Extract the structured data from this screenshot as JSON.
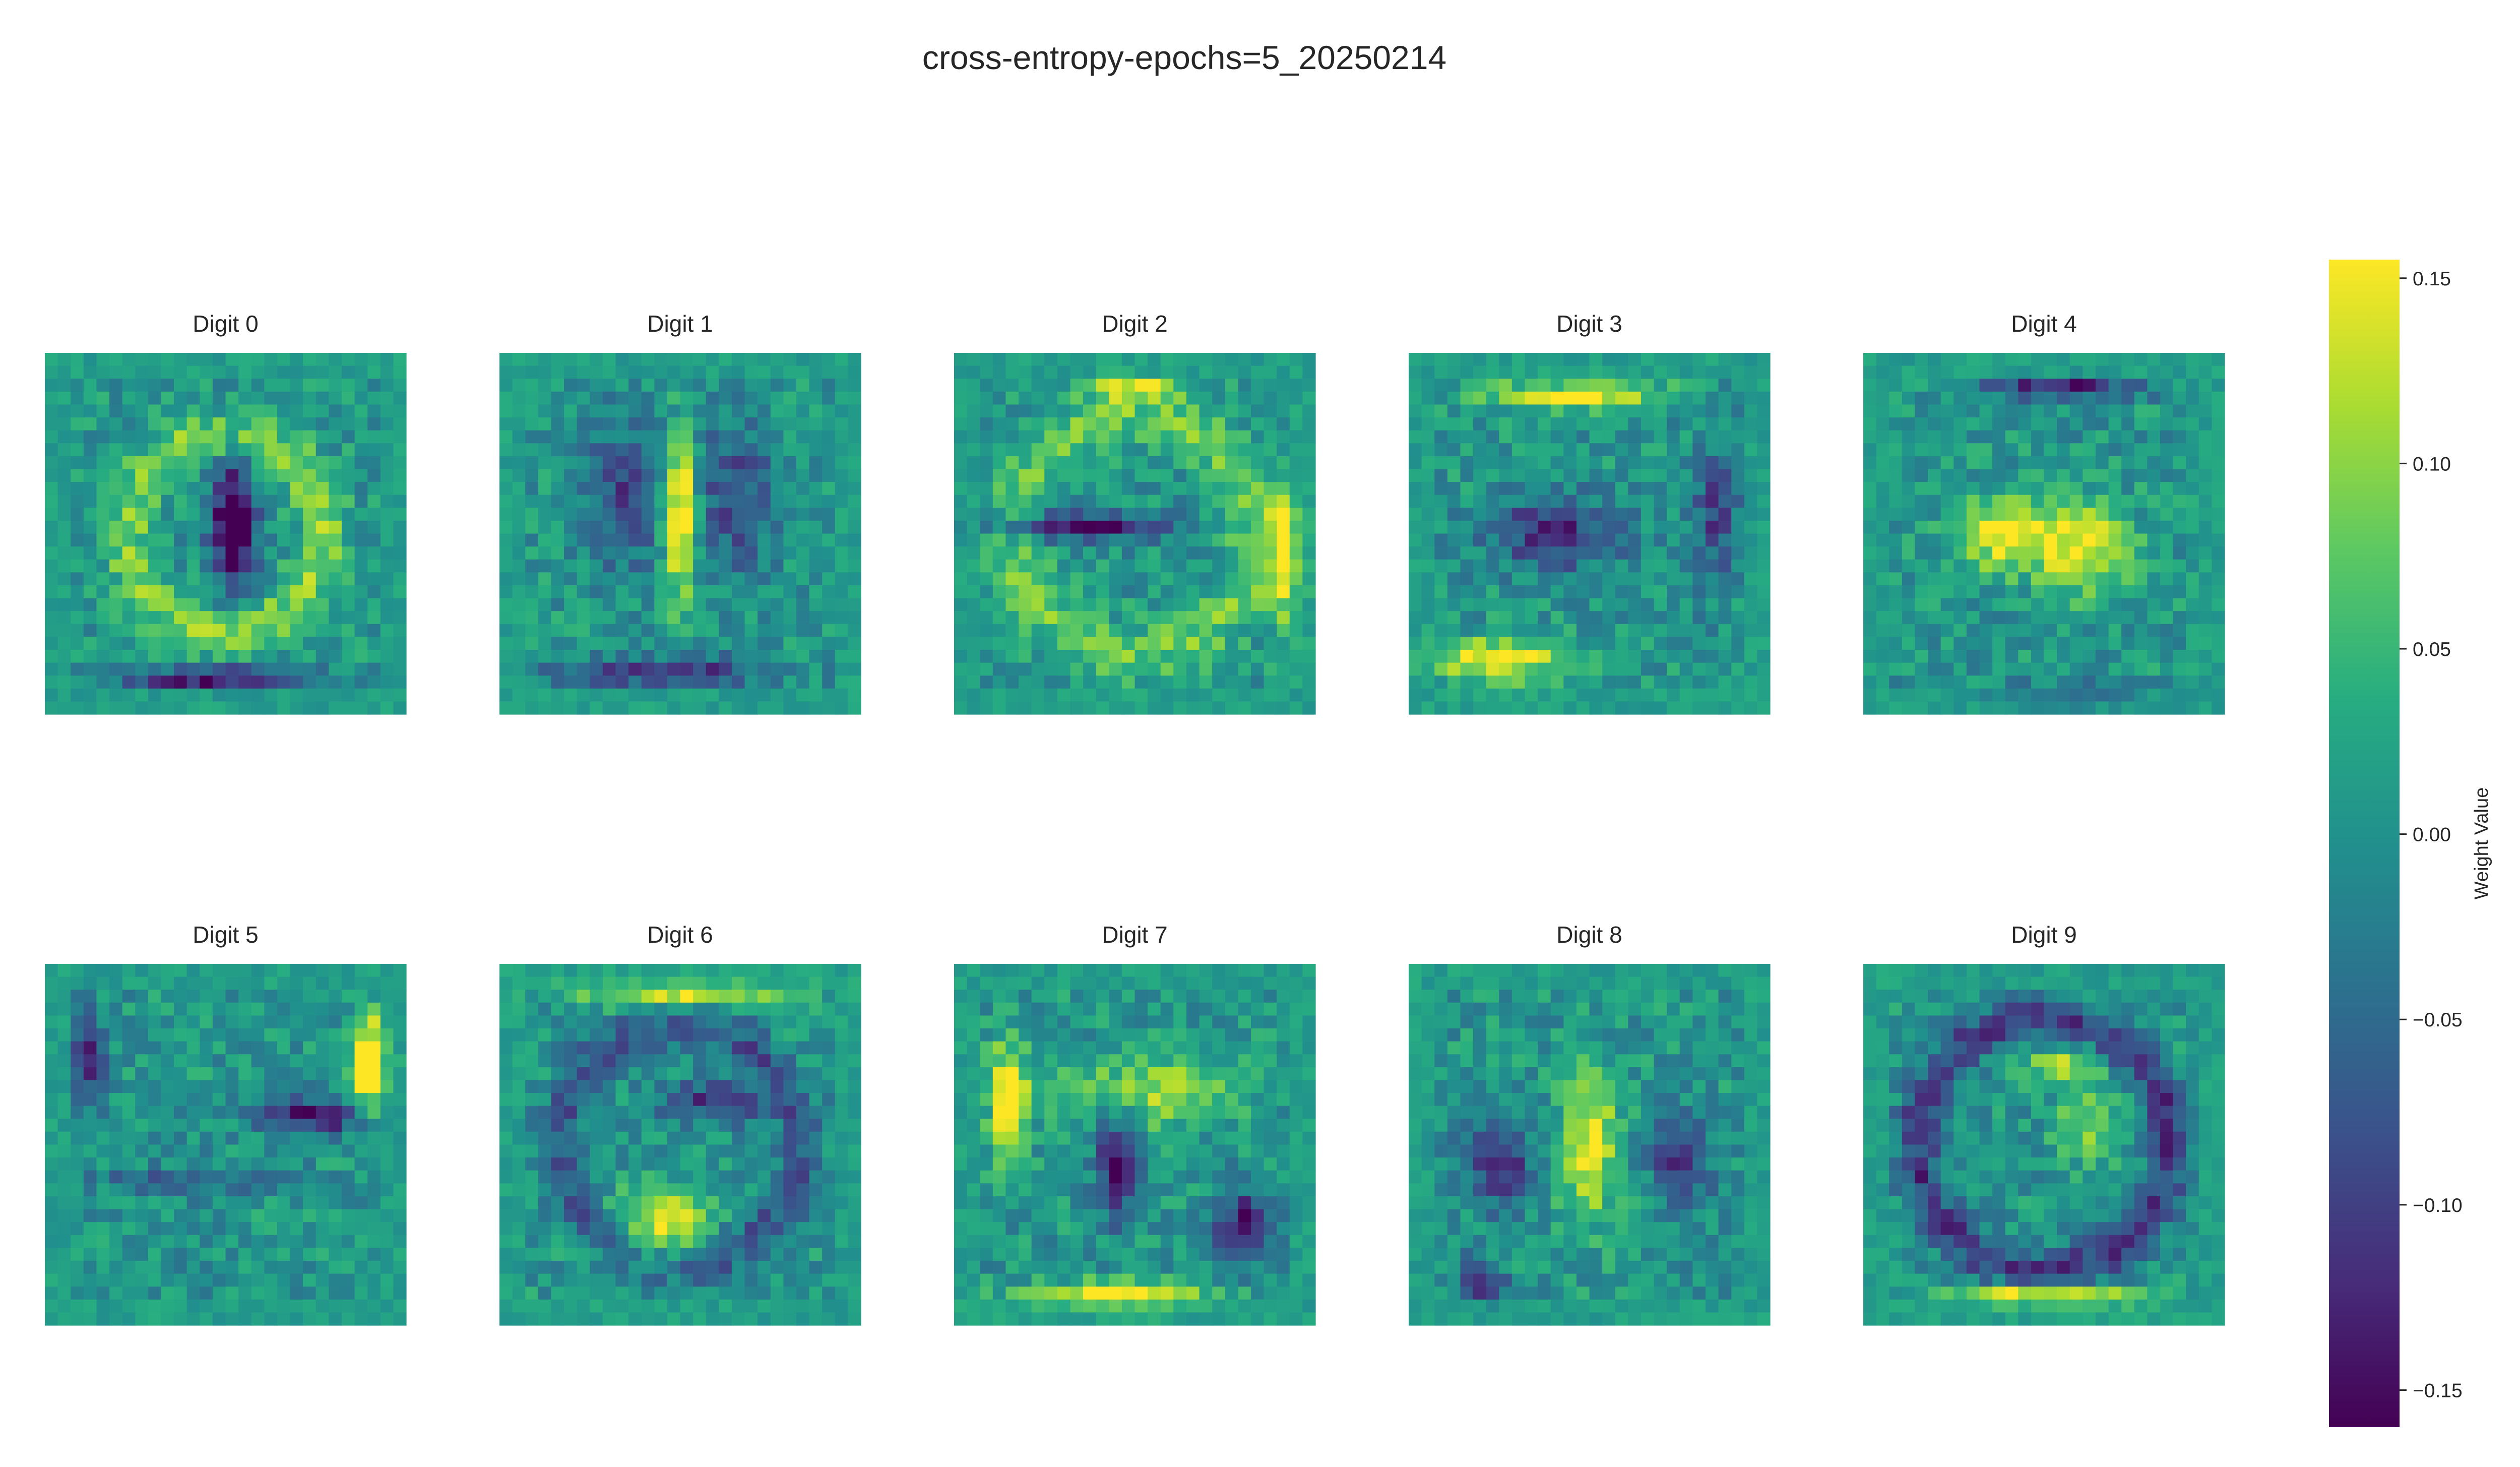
{
  "chart_data": {
    "type": "heatmap",
    "title": "cross-entropy-epochs=5_20250214",
    "panels": [
      {
        "label": "Digit 0",
        "digit": 0
      },
      {
        "label": "Digit 1",
        "digit": 1
      },
      {
        "label": "Digit 2",
        "digit": 2
      },
      {
        "label": "Digit 3",
        "digit": 3
      },
      {
        "label": "Digit 4",
        "digit": 4
      },
      {
        "label": "Digit 5",
        "digit": 5
      },
      {
        "label": "Digit 6",
        "digit": 6
      },
      {
        "label": "Digit 7",
        "digit": 7
      },
      {
        "label": "Digit 8",
        "digit": 8
      },
      {
        "label": "Digit 9",
        "digit": 9
      }
    ],
    "grid_size": [
      28,
      28
    ],
    "grid_lines": false,
    "colormap": "viridis",
    "colorbar": {
      "label": "Weight Value",
      "range": [
        -0.16,
        0.155
      ],
      "ticks": [
        0.15,
        0.1,
        0.05,
        0.0,
        -0.05,
        -0.1,
        -0.15
      ],
      "tick_labels": [
        "0.15",
        "0.10",
        "0.05",
        "0.00",
        "−0.05",
        "−0.10",
        "−0.15"
      ],
      "placement": "right"
    },
    "colors": {
      "viridis": [
        "#440154",
        "#472c7a",
        "#3b518b",
        "#2c718e",
        "#21908d",
        "#27ad81",
        "#5cc863",
        "#aadc32",
        "#fde725"
      ]
    }
  }
}
